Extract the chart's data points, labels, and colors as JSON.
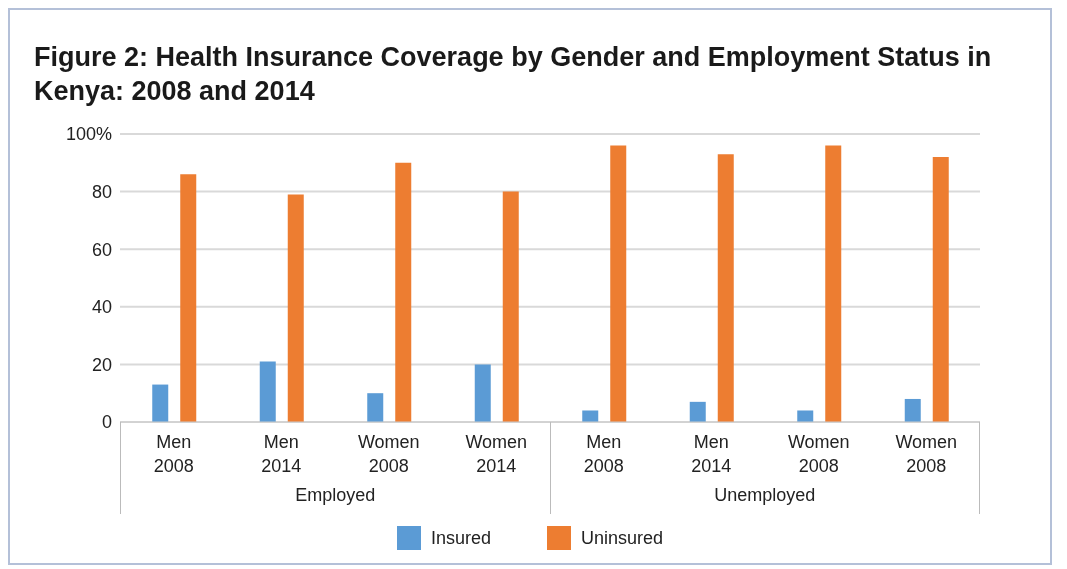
{
  "chart_data": {
    "type": "bar",
    "title": "Figure 2: Health Insurance Coverage by Gender and Employment Status in Kenya: 2008 and 2014",
    "categories": [
      "Men\n2008",
      "Men\n2014",
      "Women\n2008",
      "Women\n2014",
      "Men\n2008",
      "Men\n2014",
      "Women\n2008",
      "Women\n2008"
    ],
    "series": [
      {
        "name": "Insured",
        "color": "#5b9bd5",
        "values": [
          13,
          21,
          10,
          20,
          4,
          7,
          4,
          8
        ]
      },
      {
        "name": "Uninsured",
        "color": "#ed7d31",
        "values": [
          86,
          79,
          90,
          80,
          96,
          93,
          96,
          92
        ]
      }
    ],
    "ylim": [
      0,
      100
    ],
    "yticks": [
      0,
      20,
      40,
      60,
      80,
      {
        "value": 100,
        "label": "100%"
      }
    ],
    "annotations": [
      "Employed",
      "Unemployed"
    ],
    "grid": "y",
    "legend": "bottom"
  }
}
